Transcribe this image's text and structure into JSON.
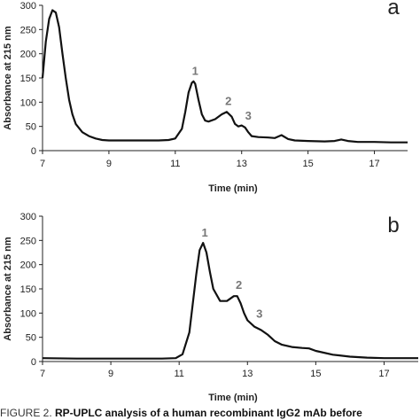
{
  "chart_data": [
    {
      "type": "line",
      "panel_label": "a",
      "xlabel": "Time (min)",
      "ylabel": "Absorbance at 215 nm",
      "xlim": [
        7,
        18
      ],
      "ylim": [
        0,
        300
      ],
      "xticks": [
        7,
        9,
        11,
        13,
        15,
        17
      ],
      "yticks": [
        0,
        50,
        100,
        150,
        200,
        250,
        300
      ],
      "grid": false,
      "series": [
        {
          "x": [
            7.0,
            7.1,
            7.2,
            7.3,
            7.4,
            7.5,
            7.6,
            7.7,
            7.8,
            7.9,
            8.0,
            8.2,
            8.4,
            8.6,
            8.8,
            9.0,
            9.5,
            10.0,
            10.5,
            10.8,
            11.0,
            11.2,
            11.3,
            11.4,
            11.5,
            11.55,
            11.6,
            11.7,
            11.8,
            11.9,
            12.0,
            12.2,
            12.4,
            12.55,
            12.7,
            12.8,
            12.9,
            13.0,
            13.1,
            13.2,
            13.3,
            13.5,
            13.8,
            14.0,
            14.2,
            14.4,
            14.6,
            15.0,
            15.5,
            15.8,
            16.0,
            16.2,
            16.5,
            17.0,
            17.5,
            18.0
          ],
          "values": [
            150,
            225,
            272,
            290,
            285,
            255,
            200,
            150,
            105,
            75,
            55,
            38,
            30,
            25,
            22,
            21,
            21,
            21,
            21,
            22,
            25,
            45,
            80,
            120,
            140,
            143,
            138,
            105,
            75,
            62,
            60,
            65,
            75,
            80,
            70,
            55,
            50,
            52,
            48,
            38,
            30,
            28,
            27,
            26,
            32,
            24,
            21,
            20,
            19,
            20,
            23,
            20,
            18,
            18,
            17,
            17
          ]
        }
      ],
      "annotations": [
        {
          "text": "1",
          "x": 11.6,
          "y": 156
        },
        {
          "text": "2",
          "x": 12.6,
          "y": 94
        },
        {
          "text": "3",
          "x": 13.2,
          "y": 64
        }
      ]
    },
    {
      "type": "line",
      "panel_label": "b",
      "xlabel": "Time (min)",
      "ylabel": "Absorbance at 215 nm",
      "xlim": [
        7,
        18
      ],
      "ylim": [
        0,
        300
      ],
      "xticks": [
        7,
        9,
        11,
        13,
        15,
        17
      ],
      "yticks": [
        0,
        50,
        100,
        150,
        200,
        250,
        300
      ],
      "grid": false,
      "series": [
        {
          "x": [
            7.0,
            8.0,
            9.0,
            10.0,
            10.5,
            10.9,
            11.1,
            11.3,
            11.5,
            11.6,
            11.7,
            11.8,
            11.9,
            12.0,
            12.2,
            12.4,
            12.6,
            12.7,
            12.8,
            12.9,
            13.0,
            13.2,
            13.4,
            13.6,
            13.8,
            14.0,
            14.3,
            14.6,
            14.8,
            15.0,
            15.5,
            16.0,
            16.5,
            17.0,
            18.0
          ],
          "values": [
            7,
            6,
            6,
            6,
            6,
            7,
            15,
            60,
            180,
            230,
            245,
            225,
            185,
            150,
            125,
            125,
            135,
            135,
            120,
            100,
            85,
            72,
            65,
            55,
            42,
            35,
            30,
            28,
            27,
            22,
            14,
            10,
            8,
            7,
            7
          ]
        }
      ],
      "annotations": [
        {
          "text": "1",
          "x": 11.75,
          "y": 258
        },
        {
          "text": "2",
          "x": 12.75,
          "y": 150
        },
        {
          "text": "3",
          "x": 13.35,
          "y": 91
        }
      ]
    }
  ],
  "caption": {
    "prefix": "FIGURE 2. ",
    "bold": "RP-UPLC analysis of a human recombinant IgG2 mAb before"
  }
}
